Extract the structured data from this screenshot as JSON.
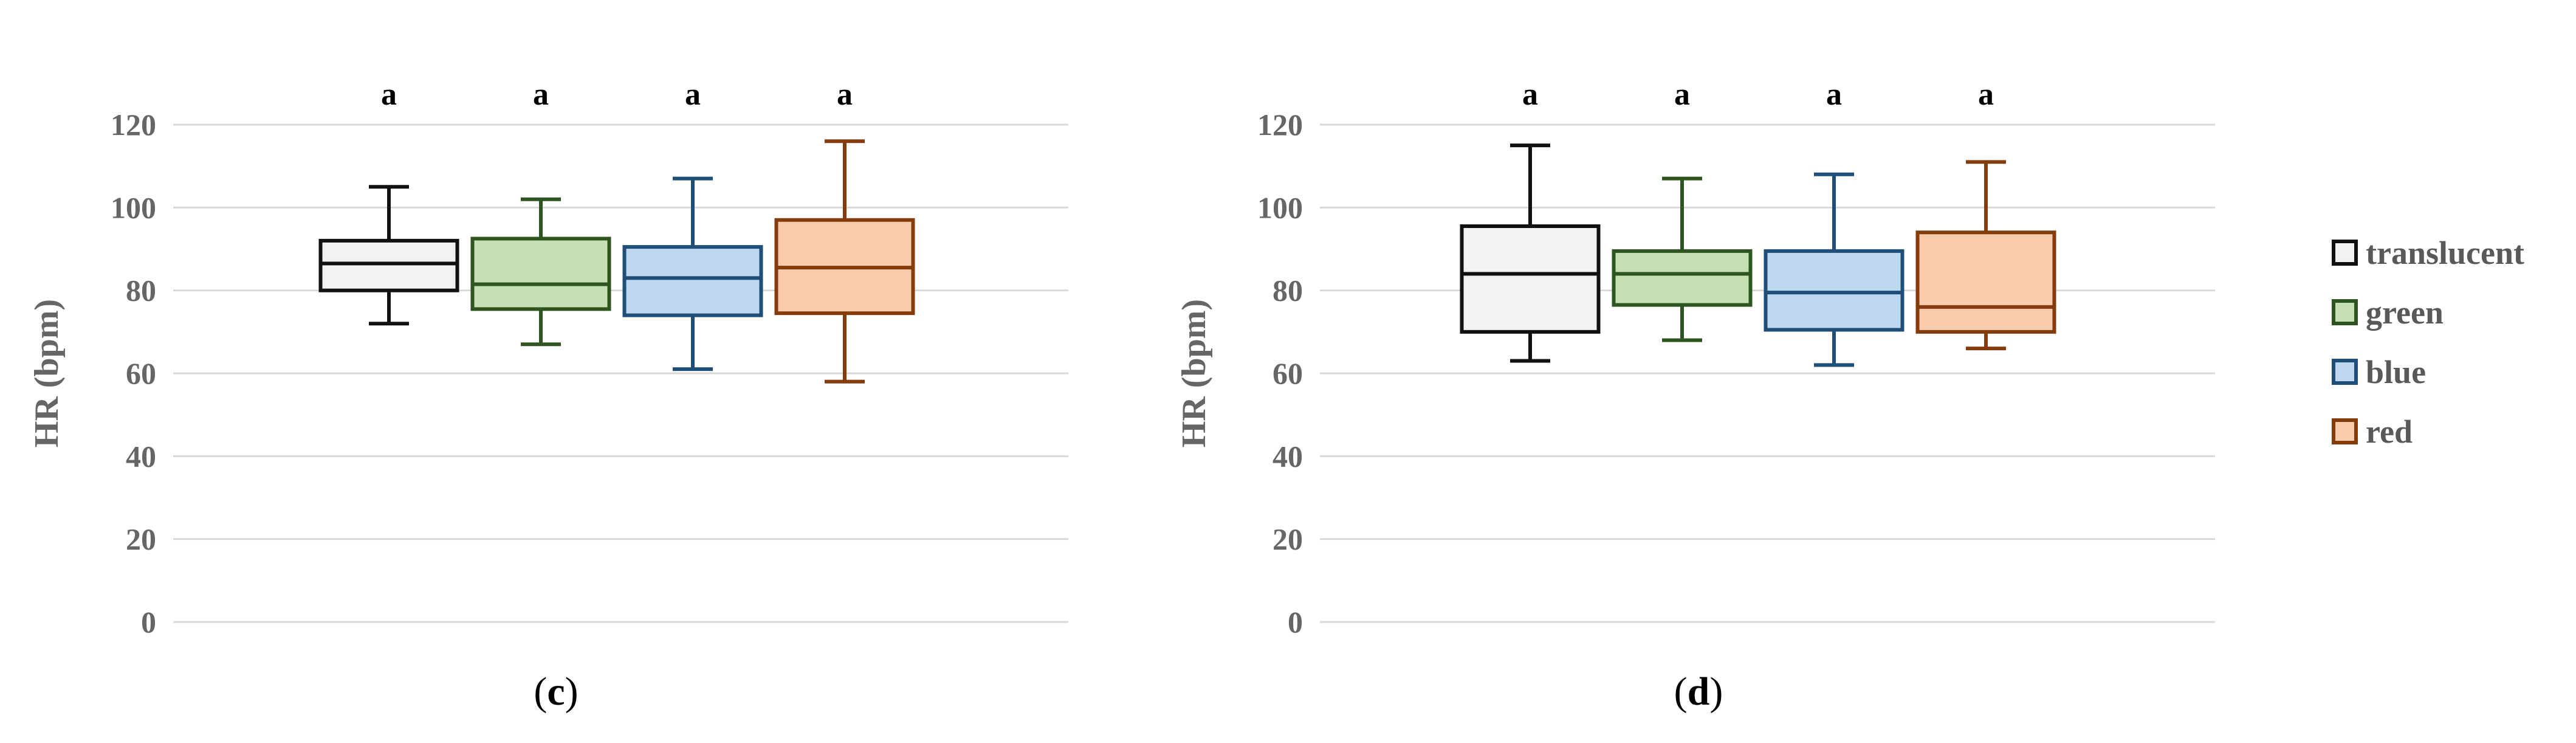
{
  "colors": {
    "translucent": {
      "stroke": "#111111",
      "fill": "#f2f2f2"
    },
    "green": {
      "stroke": "#2e5520",
      "fill": "#c5e0b4"
    },
    "blue": {
      "stroke": "#1f4e79",
      "fill": "#bdd7ee"
    },
    "red": {
      "stroke": "#843c0c",
      "fill": "#f8cbad"
    },
    "grid": "#d9d9d9",
    "tick_text": "#666666"
  },
  "legend": {
    "position": "right",
    "items": [
      {
        "label": "translucent",
        "color_key": "translucent"
      },
      {
        "label": "green",
        "color_key": "green"
      },
      {
        "label": "blue",
        "color_key": "blue"
      },
      {
        "label": "red",
        "color_key": "red"
      }
    ]
  },
  "chart_data": [
    {
      "type": "box",
      "panel_label_open": "(",
      "panel_label_letter": "c",
      "panel_label_close": ")",
      "ylabel": "HR (bpm)",
      "ylim": [
        0,
        120
      ],
      "yticks": [
        0,
        20,
        40,
        60,
        80,
        100,
        120
      ],
      "grid": true,
      "series": [
        {
          "name": "translucent",
          "min": 72,
          "q1": 80,
          "median": 86.5,
          "q3": 92,
          "max": 105,
          "significance": "a"
        },
        {
          "name": "green",
          "min": 67,
          "q1": 75.5,
          "median": 81.5,
          "q3": 92.5,
          "max": 102,
          "significance": "a"
        },
        {
          "name": "blue",
          "min": 61,
          "q1": 74,
          "median": 83,
          "q3": 90.5,
          "max": 107,
          "significance": "a"
        },
        {
          "name": "red",
          "min": 58,
          "q1": 74.5,
          "median": 85.5,
          "q3": 97,
          "max": 116,
          "significance": "a"
        }
      ]
    },
    {
      "type": "box",
      "panel_label_open": "(",
      "panel_label_letter": "d",
      "panel_label_close": ")",
      "ylabel": "HR (bpm)",
      "ylim": [
        0,
        120
      ],
      "yticks": [
        0,
        20,
        40,
        60,
        80,
        100,
        120
      ],
      "grid": true,
      "series": [
        {
          "name": "translucent",
          "min": 63,
          "q1": 70,
          "median": 84,
          "q3": 95.5,
          "max": 115,
          "significance": "a"
        },
        {
          "name": "green",
          "min": 68,
          "q1": 76.5,
          "median": 84,
          "q3": 89.5,
          "max": 107,
          "significance": "a"
        },
        {
          "name": "blue",
          "min": 62,
          "q1": 70.5,
          "median": 79.5,
          "q3": 89.5,
          "max": 108,
          "significance": "a"
        },
        {
          "name": "red",
          "min": 66,
          "q1": 70,
          "median": 76,
          "q3": 94,
          "max": 111,
          "significance": "a"
        }
      ]
    }
  ]
}
